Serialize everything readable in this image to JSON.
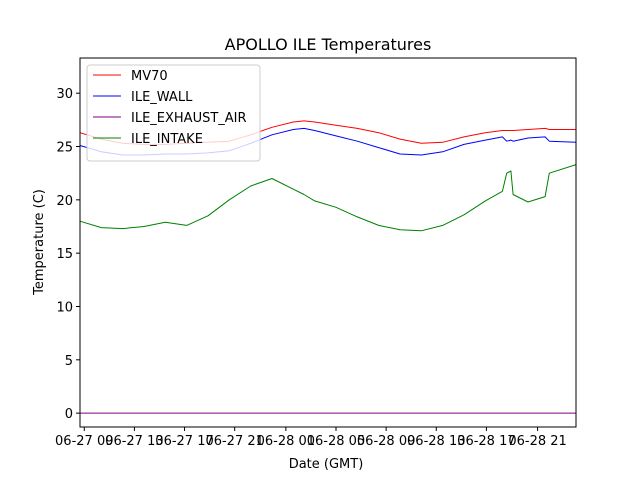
{
  "chart_data": {
    "type": "line",
    "title": "APOLLO ILE Temperatures",
    "xlabel": "Date (GMT)",
    "ylabel": "Temperature (C)",
    "xlim": [
      0.0,
      46.5
    ],
    "ylim": [
      -1.3,
      33.3
    ],
    "x_unit": "hours since 06-27 00:00 GMT",
    "xticks": [
      {
        "value": 0.4,
        "label": "06-27 09"
      },
      {
        "value": 5.1,
        "label": "06-27 13"
      },
      {
        "value": 9.8,
        "label": "06-27 17"
      },
      {
        "value": 14.5,
        "label": "06-27 21"
      },
      {
        "value": 19.3,
        "label": "06-28 01"
      },
      {
        "value": 24.0,
        "label": "06-28 05"
      },
      {
        "value": 28.7,
        "label": "06-28 09"
      },
      {
        "value": 33.4,
        "label": "06-28 13"
      },
      {
        "value": 38.1,
        "label": "06-28 17"
      },
      {
        "value": 42.9,
        "label": "06-28 21"
      }
    ],
    "yticks": [
      {
        "value": 0,
        "label": "0"
      },
      {
        "value": 5,
        "label": "5"
      },
      {
        "value": 10,
        "label": "10"
      },
      {
        "value": 15,
        "label": "15"
      },
      {
        "value": 20,
        "label": "20"
      },
      {
        "value": 25,
        "label": "25"
      },
      {
        "value": 30,
        "label": "30"
      }
    ],
    "grid": false,
    "legend_position": "top-left",
    "x": [
      0,
      2,
      4,
      6,
      8,
      10,
      12,
      14,
      16,
      18,
      20,
      21,
      22,
      24,
      26,
      28,
      30,
      32,
      34,
      36,
      38,
      39.6,
      40,
      40.4,
      40.6,
      42,
      43.6,
      44,
      46.5
    ],
    "series": [
      {
        "name": "MV70",
        "color": "#ff0000",
        "values": [
          26.3,
          25.7,
          25.3,
          25.2,
          25.2,
          25.3,
          25.4,
          25.5,
          26.1,
          26.8,
          27.3,
          27.4,
          27.3,
          27.0,
          26.7,
          26.3,
          25.7,
          25.3,
          25.4,
          25.9,
          26.3,
          26.5,
          26.5,
          26.5,
          26.5,
          26.6,
          26.7,
          26.6,
          26.6
        ]
      },
      {
        "name": "ILE_WALL",
        "color": "#0000ff",
        "values": [
          25.1,
          24.5,
          24.2,
          24.2,
          24.3,
          24.3,
          24.4,
          24.6,
          25.3,
          26.1,
          26.6,
          26.7,
          26.5,
          26.0,
          25.5,
          24.9,
          24.3,
          24.2,
          24.5,
          25.2,
          25.6,
          25.9,
          25.5,
          25.6,
          25.5,
          25.8,
          25.9,
          25.5,
          25.4
        ]
      },
      {
        "name": "ILE_EXHAUST_AIR",
        "color": "#800080",
        "values": [
          0,
          0,
          0,
          0,
          0,
          0,
          0,
          0,
          0,
          0,
          0,
          0,
          0,
          0,
          0,
          0,
          0,
          0,
          0,
          0,
          0,
          0,
          0,
          0,
          0,
          0,
          0,
          0,
          0
        ]
      },
      {
        "name": "ILE_INTAKE",
        "color": "#008000",
        "values": [
          18.0,
          17.4,
          17.3,
          17.5,
          17.9,
          17.6,
          18.5,
          20.0,
          21.3,
          22.0,
          21.0,
          20.5,
          19.9,
          19.3,
          18.4,
          17.6,
          17.2,
          17.1,
          17.6,
          18.6,
          19.9,
          20.8,
          22.5,
          22.7,
          20.5,
          19.8,
          20.3,
          22.5,
          23.3
        ]
      }
    ]
  }
}
